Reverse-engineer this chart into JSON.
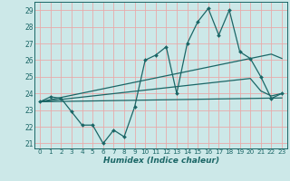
{
  "xlabel": "Humidex (Indice chaleur)",
  "bg_color": "#cce8e8",
  "grid_color": "#e8aaaa",
  "line_color": "#1a6666",
  "xlim": [
    -0.5,
    23.5
  ],
  "ylim": [
    20.7,
    29.5
  ],
  "yticks": [
    21,
    22,
    23,
    24,
    25,
    26,
    27,
    28,
    29
  ],
  "xticks": [
    0,
    1,
    2,
    3,
    4,
    5,
    6,
    7,
    8,
    9,
    10,
    11,
    12,
    13,
    14,
    15,
    16,
    17,
    18,
    19,
    20,
    21,
    22,
    23
  ],
  "x": [
    0,
    1,
    2,
    3,
    4,
    5,
    6,
    7,
    8,
    9,
    10,
    11,
    12,
    13,
    14,
    15,
    16,
    17,
    18,
    19,
    20,
    21,
    22,
    23
  ],
  "y_main": [
    23.5,
    23.8,
    23.7,
    22.9,
    22.1,
    22.1,
    21.0,
    21.8,
    21.4,
    23.2,
    26.0,
    26.3,
    26.8,
    24.0,
    27.0,
    28.3,
    29.1,
    27.5,
    29.0,
    26.5,
    26.1,
    25.0,
    23.7,
    24.0
  ],
  "y_reg1": [
    23.5,
    23.63,
    23.76,
    23.89,
    24.02,
    24.15,
    24.28,
    24.41,
    24.54,
    24.67,
    24.8,
    24.93,
    25.06,
    25.19,
    25.32,
    25.45,
    25.58,
    25.71,
    25.84,
    25.97,
    26.1,
    26.23,
    26.36,
    26.1
  ],
  "y_reg2": [
    23.5,
    23.57,
    23.64,
    23.71,
    23.78,
    23.85,
    23.92,
    23.99,
    24.06,
    24.13,
    24.2,
    24.27,
    24.34,
    24.41,
    24.48,
    24.55,
    24.62,
    24.69,
    24.76,
    24.83,
    24.9,
    24.15,
    23.85,
    24.0
  ],
  "y_reg3": [
    23.5,
    23.51,
    23.52,
    23.53,
    23.54,
    23.55,
    23.56,
    23.57,
    23.58,
    23.59,
    23.6,
    23.61,
    23.62,
    23.63,
    23.64,
    23.65,
    23.66,
    23.67,
    23.68,
    23.69,
    23.7,
    23.71,
    23.72,
    23.73
  ]
}
